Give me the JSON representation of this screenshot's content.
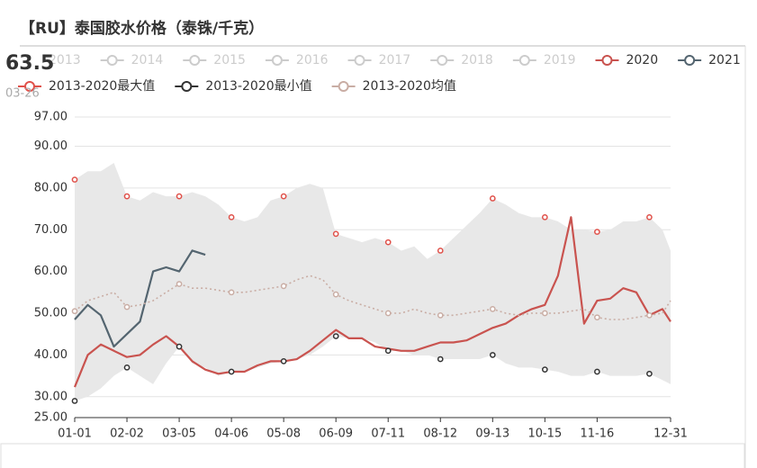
{
  "chart_data": {
    "type": "line",
    "title": "【RU】泰国胶水价格（泰铢/千克）",
    "current_value": "63.5",
    "current_date": "03-26",
    "x": [
      "01-01",
      "01-09",
      "01-17",
      "01-25",
      "02-02",
      "02-10",
      "02-18",
      "02-26",
      "03-05",
      "03-13",
      "03-21",
      "03-29",
      "04-06",
      "04-14",
      "04-22",
      "04-30",
      "05-08",
      "05-16",
      "05-24",
      "06-01",
      "06-09",
      "06-17",
      "06-25",
      "07-03",
      "07-11",
      "07-19",
      "07-27",
      "08-04",
      "08-12",
      "08-20",
      "08-28",
      "09-05",
      "09-13",
      "09-21",
      "09-29",
      "10-07",
      "10-15",
      "10-23",
      "10-31",
      "11-08",
      "11-16",
      "11-24",
      "12-02",
      "12-10",
      "12-18",
      "12-26",
      "12-31"
    ],
    "xticks": [
      "01-01",
      "02-02",
      "03-05",
      "04-06",
      "05-08",
      "06-09",
      "07-11",
      "08-12",
      "09-13",
      "10-15",
      "11-16",
      "12-31"
    ],
    "ylim": [
      25,
      97
    ],
    "yticks": [
      {
        "value": 25,
        "label": "25.00"
      },
      {
        "value": 30,
        "label": "30.00"
      },
      {
        "value": 40,
        "label": "40.00"
      },
      {
        "value": 50,
        "label": "50.00"
      },
      {
        "value": 60,
        "label": "60.00"
      },
      {
        "value": 70,
        "label": "70.00"
      },
      {
        "value": 80,
        "label": "80.00"
      },
      {
        "value": 90,
        "label": "90.00"
      },
      {
        "value": 97,
        "label": "97.00"
      }
    ],
    "grid": true,
    "band_color": "#e8e8e8",
    "series": [
      {
        "name": "2013",
        "color": "#cccccc",
        "visible": false
      },
      {
        "name": "2014",
        "color": "#cccccc",
        "visible": false
      },
      {
        "name": "2015",
        "color": "#cccccc",
        "visible": false
      },
      {
        "name": "2016",
        "color": "#cccccc",
        "visible": false
      },
      {
        "name": "2017",
        "color": "#cccccc",
        "visible": false
      },
      {
        "name": "2018",
        "color": "#cccccc",
        "visible": false
      },
      {
        "name": "2019",
        "color": "#cccccc",
        "visible": false
      },
      {
        "name": "2020",
        "color": "#c9534f",
        "visible": true,
        "line_style": "solid",
        "values": [
          32.3,
          40,
          42.5,
          41,
          39.5,
          40,
          42.5,
          44.5,
          42,
          38.5,
          36.5,
          35.5,
          36,
          36,
          37.5,
          38.5,
          38.5,
          39,
          41,
          43.5,
          46,
          44,
          44,
          42,
          41.5,
          41,
          41,
          42,
          43,
          43,
          43.5,
          45,
          46.5,
          47.5,
          49.5,
          51,
          52,
          59,
          73,
          47.5,
          53,
          53.5,
          56,
          55,
          49.5,
          51,
          48
        ]
      },
      {
        "name": "2021",
        "color": "#546570",
        "visible": true,
        "line_style": "solid",
        "values": [
          48.5,
          52,
          49.5,
          42,
          45,
          48,
          60,
          61,
          60,
          65,
          64,
          null,
          null,
          null,
          null,
          null,
          null,
          null,
          null,
          null,
          null,
          null,
          null,
          null,
          null,
          null,
          null,
          null,
          null,
          null,
          null,
          null,
          null,
          null,
          null,
          null,
          null,
          null,
          null,
          null,
          null,
          null,
          null,
          null,
          null,
          null,
          null
        ]
      },
      {
        "name": "2013-2020最大值",
        "color": "#e0514a",
        "visible": true,
        "line_style": "none",
        "band": "upper",
        "markers": true,
        "values": [
          82,
          84,
          84,
          86,
          78,
          77,
          79,
          78,
          78,
          79,
          78,
          76,
          73,
          72,
          73,
          77,
          78,
          80,
          81,
          80,
          69,
          68,
          67,
          68,
          67,
          65,
          66,
          63,
          65,
          68,
          71,
          74,
          77.5,
          76,
          74,
          73,
          73,
          72,
          70,
          70,
          69.5,
          70,
          72,
          72,
          73,
          70,
          65
        ]
      },
      {
        "name": "2013-2020最小值",
        "color": "#333333",
        "visible": true,
        "line_style": "none",
        "band": "lower",
        "markers": true,
        "values": [
          29,
          30,
          32,
          35,
          37,
          35,
          33,
          38,
          42,
          38,
          37,
          35,
          36,
          36,
          37,
          38,
          38.5,
          39,
          40,
          42,
          44.5,
          44,
          44,
          43,
          41,
          41,
          40,
          40,
          39,
          39,
          39,
          39,
          40,
          38,
          37,
          37,
          36.5,
          36,
          35,
          35,
          36,
          35,
          35,
          35,
          35.5,
          34,
          33
        ]
      },
      {
        "name": "2013-2020均值",
        "color": "#c9ada4",
        "visible": true,
        "line_style": "dotted",
        "markers": true,
        "values": [
          50.5,
          53,
          54,
          55,
          51.5,
          52,
          53,
          55,
          57,
          56,
          56,
          55.5,
          55,
          55,
          55.5,
          56,
          56.5,
          58,
          59,
          58,
          54.5,
          53,
          52,
          51,
          50,
          50,
          51,
          50,
          49.5,
          49.5,
          50,
          50.5,
          51,
          50,
          49.5,
          50,
          50,
          50,
          50.5,
          51,
          49,
          48.5,
          48.5,
          49,
          49.5,
          50,
          53
        ]
      }
    ]
  }
}
